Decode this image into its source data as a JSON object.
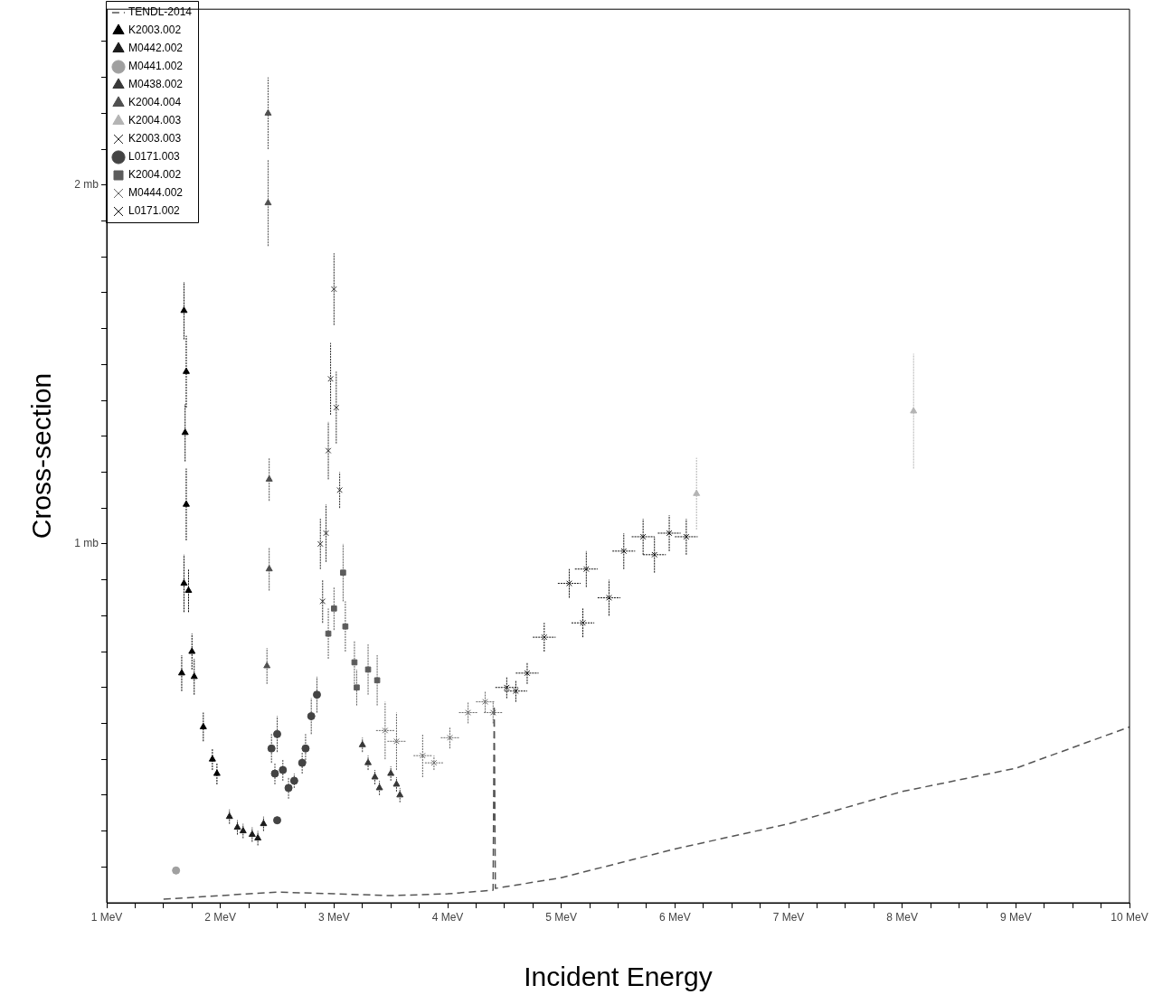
{
  "chart_data": {
    "type": "scatter",
    "xlabel": "Incident Energy",
    "ylabel": "Cross-section",
    "xlim": [
      1,
      10
    ],
    "ylim": [
      0,
      2.49
    ],
    "xticks": [
      {
        "value": 1,
        "label": "1 MeV"
      },
      {
        "value": 1.25,
        "label": null
      },
      {
        "value": 1.5,
        "label": null
      },
      {
        "value": 1.75,
        "label": null
      },
      {
        "value": 2,
        "label": "2 MeV"
      },
      {
        "value": 2.25,
        "label": null
      },
      {
        "value": 2.5,
        "label": null
      },
      {
        "value": 2.75,
        "label": null
      },
      {
        "value": 3,
        "label": "3 MeV"
      },
      {
        "value": 3.25,
        "label": null
      },
      {
        "value": 3.5,
        "label": null
      },
      {
        "value": 3.75,
        "label": null
      },
      {
        "value": 4,
        "label": "4 MeV"
      },
      {
        "value": 4.25,
        "label": null
      },
      {
        "value": 4.5,
        "label": null
      },
      {
        "value": 4.75,
        "label": null
      },
      {
        "value": 5,
        "label": "5 MeV"
      },
      {
        "value": 5.25,
        "label": null
      },
      {
        "value": 5.5,
        "label": null
      },
      {
        "value": 5.75,
        "label": null
      },
      {
        "value": 6,
        "label": "6 MeV"
      },
      {
        "value": 6.25,
        "label": null
      },
      {
        "value": 6.5,
        "label": null
      },
      {
        "value": 6.75,
        "label": null
      },
      {
        "value": 7,
        "label": "7 MeV"
      },
      {
        "value": 7.25,
        "label": null
      },
      {
        "value": 7.5,
        "label": null
      },
      {
        "value": 7.75,
        "label": null
      },
      {
        "value": 8,
        "label": "8 MeV"
      },
      {
        "value": 8.25,
        "label": null
      },
      {
        "value": 8.5,
        "label": null
      },
      {
        "value": 8.75,
        "label": null
      },
      {
        "value": 9,
        "label": "9 MeV"
      },
      {
        "value": 9.25,
        "label": null
      },
      {
        "value": 9.5,
        "label": null
      },
      {
        "value": 9.75,
        "label": null
      },
      {
        "value": 10,
        "label": "10 MeV"
      }
    ],
    "yticks": [
      {
        "value": 0.1,
        "label": null
      },
      {
        "value": 0.2,
        "label": null
      },
      {
        "value": 0.3,
        "label": null
      },
      {
        "value": 0.4,
        "label": null
      },
      {
        "value": 0.5,
        "label": null
      },
      {
        "value": 0.6,
        "label": null
      },
      {
        "value": 0.7,
        "label": null
      },
      {
        "value": 0.8,
        "label": null
      },
      {
        "value": 0.9,
        "label": null
      },
      {
        "value": 1,
        "label": "1 mb"
      },
      {
        "value": 1.1,
        "label": null
      },
      {
        "value": 1.2,
        "label": null
      },
      {
        "value": 1.3,
        "label": null
      },
      {
        "value": 1.4,
        "label": null
      },
      {
        "value": 1.5,
        "label": null
      },
      {
        "value": 1.6,
        "label": null
      },
      {
        "value": 1.7,
        "label": null
      },
      {
        "value": 1.8,
        "label": null
      },
      {
        "value": 1.9,
        "label": null
      },
      {
        "value": 2,
        "label": "2 mb"
      },
      {
        "value": 2.1,
        "label": null
      },
      {
        "value": 2.2,
        "label": null
      },
      {
        "value": 2.3,
        "label": null
      },
      {
        "value": 2.4,
        "label": null
      }
    ],
    "legend": "top left",
    "grid": false,
    "series": [
      {
        "name": "TENDL-2014",
        "type": "line",
        "line_style": "dashed",
        "marker": "none",
        "color": "#555555",
        "x": [
          1.5,
          2,
          2.5,
          3,
          3.5,
          4,
          4.4,
          4.41,
          4.42,
          5,
          6,
          7,
          8,
          9,
          10
        ],
        "values": [
          0.01,
          0.02,
          0.03,
          0.025,
          0.02,
          0.025,
          0.035,
          0.55,
          0.04,
          0.07,
          0.15,
          0.22,
          0.31,
          0.375,
          0.49
        ]
      },
      {
        "name": "K2003.002",
        "marker": "triangle",
        "color": "#000000",
        "x": [
          1.68,
          1.7,
          1.69,
          1.7,
          1.68,
          1.72,
          1.75,
          1.77,
          1.85,
          1.93,
          1.97,
          1.66
        ],
        "values": [
          1.65,
          1.48,
          1.31,
          1.11,
          0.89,
          0.87,
          0.7,
          0.63,
          0.49,
          0.4,
          0.36,
          0.64
        ],
        "errors": [
          0.08,
          0.1,
          0.08,
          0.1,
          0.08,
          0.06,
          0.05,
          0.05,
          0.04,
          0.03,
          0.03,
          0.05
        ]
      },
      {
        "name": "M0442.002",
        "marker": "triangle",
        "color": "#1c1c1c",
        "x": [
          2.08,
          2.15,
          2.2,
          2.28,
          2.33,
          2.38
        ],
        "values": [
          0.24,
          0.21,
          0.2,
          0.19,
          0.18,
          0.22
        ],
        "errors": [
          0.02,
          0.02,
          0.02,
          0.02,
          0.02,
          0.02
        ]
      },
      {
        "name": "M0441.002",
        "marker": "circle",
        "color": "#a0a0a0",
        "x": [
          1.61
        ],
        "values": [
          0.09
        ],
        "errors": [
          0.01
        ]
      },
      {
        "name": "M0438.002",
        "marker": "triangle",
        "color": "#383838",
        "x": [
          3.25,
          3.3,
          3.36,
          3.4,
          3.5,
          3.55,
          3.58
        ],
        "values": [
          0.44,
          0.39,
          0.35,
          0.32,
          0.36,
          0.33,
          0.3
        ],
        "errors": [
          0.02,
          0.02,
          0.02,
          0.02,
          0.02,
          0.02,
          0.02
        ]
      },
      {
        "name": "K2004.004",
        "marker": "triangle",
        "color": "#505050",
        "x": [
          2.42,
          2.42,
          2.43,
          2.43,
          2.41
        ],
        "values": [
          2.2,
          1.95,
          1.18,
          0.93,
          0.66
        ],
        "errors": [
          0.1,
          0.12,
          0.06,
          0.06,
          0.05
        ]
      },
      {
        "name": "K2004.003",
        "marker": "triangle",
        "color": "#b4b4b4",
        "x": [
          6.19,
          8.1
        ],
        "values": [
          1.14,
          1.37
        ],
        "errors": [
          0.1,
          0.16
        ]
      },
      {
        "name": "K2003.003",
        "marker": "cross",
        "color": "#2a2a2a",
        "x": [
          3,
          2.97,
          3.02,
          2.95,
          2.93,
          3.05,
          2.9,
          2.88
        ],
        "values": [
          1.71,
          1.46,
          1.38,
          1.26,
          1.03,
          1.15,
          0.84,
          1
        ],
        "errors": [
          0.1,
          0.1,
          0.1,
          0.08,
          0.08,
          0.05,
          0.06,
          0.07
        ]
      },
      {
        "name": "L0171.003",
        "marker": "circle",
        "color": "#444444",
        "x": [
          2.45,
          2.5,
          2.48,
          2.55,
          2.6,
          2.65,
          2.72,
          2.75,
          2.8,
          2.85,
          2.5
        ],
        "values": [
          0.43,
          0.47,
          0.36,
          0.37,
          0.32,
          0.34,
          0.39,
          0.43,
          0.52,
          0.58,
          0.23
        ],
        "errors": [
          0.04,
          0.05,
          0.03,
          0.03,
          0.03,
          0.02,
          0.03,
          0.04,
          0.05,
          0.05,
          0.01
        ]
      },
      {
        "name": "K2004.002",
        "marker": "square",
        "color": "#5c5c5c",
        "x": [
          2.95,
          3,
          3.08,
          3.1,
          3.18,
          3.2,
          3.3,
          3.38
        ],
        "values": [
          0.75,
          0.82,
          0.92,
          0.77,
          0.67,
          0.6,
          0.65,
          0.62
        ],
        "errors": [
          0.07,
          0.06,
          0.08,
          0.07,
          0.06,
          0.05,
          0.07,
          0.07
        ]
      },
      {
        "name": "M0444.002",
        "marker": "cross",
        "color": "#686868",
        "x": [
          3.45,
          3.55,
          3.78,
          3.88,
          4.02,
          4.18,
          4.33,
          4.4
        ],
        "values": [
          0.48,
          0.45,
          0.41,
          0.39,
          0.46,
          0.53,
          0.56,
          0.53
        ],
        "errors": [
          0.08,
          0.08,
          0.06,
          0.02,
          0.03,
          0.03,
          0.03,
          0.03
        ],
        "xerrors": [
          0.08,
          0.08,
          0.08,
          0.08,
          0.08,
          0.08,
          0.08,
          0.08
        ]
      },
      {
        "name": "L0171.002",
        "marker": "cross",
        "color": "#0e0e0e",
        "x": [
          4.52,
          4.6,
          4.7,
          4.85,
          5.07,
          5.19,
          5.22,
          5.42,
          5.55,
          5.72,
          5.82,
          5.95,
          6.1
        ],
        "values": [
          0.6,
          0.59,
          0.64,
          0.74,
          0.89,
          0.78,
          0.93,
          0.85,
          0.98,
          1.02,
          0.97,
          1.03,
          1.02
        ],
        "errors": [
          0.03,
          0.03,
          0.03,
          0.04,
          0.04,
          0.04,
          0.05,
          0.05,
          0.05,
          0.05,
          0.05,
          0.05,
          0.05
        ],
        "xerrors": [
          0.1,
          0.1,
          0.1,
          0.1,
          0.1,
          0.1,
          0.1,
          0.1,
          0.1,
          0.1,
          0.1,
          0.1,
          0.1
        ]
      }
    ]
  }
}
